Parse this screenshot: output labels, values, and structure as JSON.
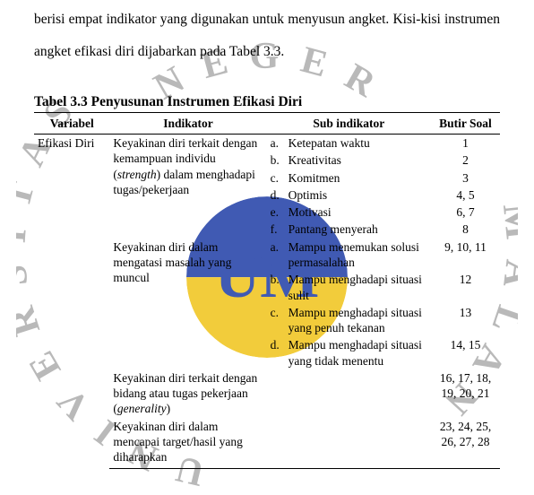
{
  "paragraph": "berisi empat indikator yang digunakan untuk menyusun angket. Kisi-kisi instrumen angket efikasi diri dijabarkan pada Tabel 3.3.",
  "table_caption": "Tabel 3.3 Penyusunan Instrumen Efikasi Diri",
  "headers": {
    "variabel": "Variabel",
    "indikator": "Indikator",
    "sub": "Sub indikator",
    "butir": "Butir Soal"
  },
  "variable": "Efikasi Diri",
  "indicators": [
    {
      "text_pre": "Keyakinan diri terkait dengan kemampuan individu (",
      "text_ital": "strength",
      "text_post": ") dalam menghadapi tugas/pekerjaan",
      "subs": [
        {
          "letter": "a",
          "text": "Ketepatan waktu",
          "butir": "1"
        },
        {
          "letter": "b",
          "text": "Kreativitas",
          "butir": "2"
        },
        {
          "letter": "c",
          "text": "Komitmen",
          "butir": "3"
        },
        {
          "letter": "d",
          "text": "Optimis",
          "butir": "4, 5"
        },
        {
          "letter": "e",
          "text": "Motivasi",
          "butir": "6, 7"
        },
        {
          "letter": "f",
          "text": "Pantang menyerah",
          "butir": "8"
        }
      ]
    },
    {
      "text_pre": "Keyakinan diri dalam mengatasi masalah yang muncul",
      "text_ital": "",
      "text_post": "",
      "subs": [
        {
          "letter": "a",
          "text": "Mampu menemukan solusi permasalahan",
          "butir": "9, 10, 11"
        },
        {
          "letter": "b",
          "text": "Mampu menghadapi situasi sulit",
          "butir": "12"
        },
        {
          "letter": "c",
          "text": "Mampu menghadapi situasi yang penuh tekanan",
          "butir": "13"
        },
        {
          "letter": "d",
          "text": "Mampu menghadapi situasi yang tidak menentu",
          "butir": "14, 15"
        }
      ]
    },
    {
      "text_pre": "Keyakinan diri terkait dengan bidang atau tugas pekerjaan (",
      "text_ital": "generality",
      "text_post": ")",
      "subs": [],
      "butir": "16, 17, 18, 19, 20, 21"
    },
    {
      "text_pre": "Keyakinan diri dalam mencapai target/hasil yang diharapkan",
      "text_ital": "",
      "text_post": "",
      "subs": [],
      "butir": "23, 24, 25, 26, 27, 28"
    }
  ],
  "watermark": {
    "top_text": "N E G E R",
    "left_text": "U N I V E R S I T A S",
    "right_text": "M A L A N",
    "ring_color": "#b9b9b9",
    "ring_text_size": 42,
    "emblem_text": "UM",
    "emblem_colors": {
      "top": "#1f3ea6",
      "bottom": "#f0c419",
      "text": "#1f3ea6"
    },
    "emblem_opacity": 0.85
  }
}
